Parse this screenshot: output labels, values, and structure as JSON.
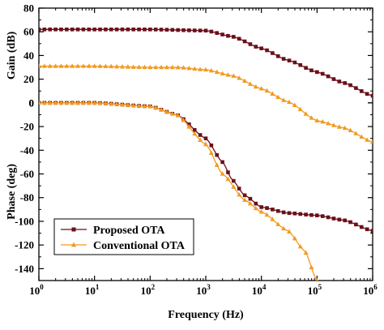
{
  "chart_data": {
    "type": "line",
    "title": "",
    "xlabel": "Frequency (Hz)",
    "ylabel_gain": "Gain (dB)",
    "ylabel_phase": "Phase (deg)",
    "x_scale": "log",
    "xlim": [
      1,
      1000000
    ],
    "ylim": [
      -150,
      80
    ],
    "x_ticks": [
      {
        "value": 1,
        "base": "10",
        "exp": "0"
      },
      {
        "value": 10,
        "base": "10",
        "exp": "1"
      },
      {
        "value": 100,
        "base": "10",
        "exp": "2"
      },
      {
        "value": 1000,
        "base": "10",
        "exp": "3"
      },
      {
        "value": 10000,
        "base": "10",
        "exp": "4"
      },
      {
        "value": 100000,
        "base": "10",
        "exp": "5"
      },
      {
        "value": 1000000,
        "base": "10",
        "exp": "6"
      }
    ],
    "y_ticks_gain": [
      0,
      20,
      40,
      60,
      80
    ],
    "y_ticks_phase": [
      -140,
      -120,
      -100,
      -80,
      -60,
      -40,
      -20,
      0
    ],
    "grid": false,
    "legend_position": "bottom-left",
    "series": [
      {
        "name": "Proposed  OTA",
        "color": "#6b0f1a",
        "marker": "square",
        "kind": "gain",
        "x": [
          1,
          10,
          100,
          1000,
          3000,
          10000,
          30000,
          100000,
          300000,
          1000000
        ],
        "y": [
          62,
          62,
          62,
          61,
          56,
          46,
          36,
          26,
          17,
          6
        ]
      },
      {
        "name": "Proposed  OTA",
        "color": "#6b0f1a",
        "marker": "square",
        "kind": "phase",
        "x": [
          1,
          10,
          100,
          300,
          1000,
          2000,
          3000,
          5000,
          10000,
          30000,
          100000,
          300000,
          1000000
        ],
        "y": [
          0,
          0,
          -3,
          -10,
          -30,
          -50,
          -65,
          -78,
          -88,
          -93,
          -95,
          -99,
          -108
        ]
      },
      {
        "name": "Conventional OTA",
        "color": "#f29a1f",
        "marker": "triangle",
        "kind": "gain",
        "x": [
          1,
          10,
          100,
          300,
          1000,
          3000,
          10000,
          30000,
          100000,
          300000,
          1000000
        ],
        "y": [
          31,
          31,
          30,
          30,
          28,
          23,
          12,
          1,
          -15,
          -21,
          -33
        ]
      },
      {
        "name": "Conventional OTA",
        "color": "#f29a1f",
        "marker": "triangle",
        "kind": "phase",
        "x": [
          1,
          10,
          100,
          300,
          1000,
          2000,
          5000,
          10000,
          30000,
          60000,
          100000
        ],
        "y": [
          0,
          0,
          -3,
          -10,
          -35,
          -60,
          -82,
          -92,
          -108,
          -125,
          -150
        ]
      }
    ]
  }
}
